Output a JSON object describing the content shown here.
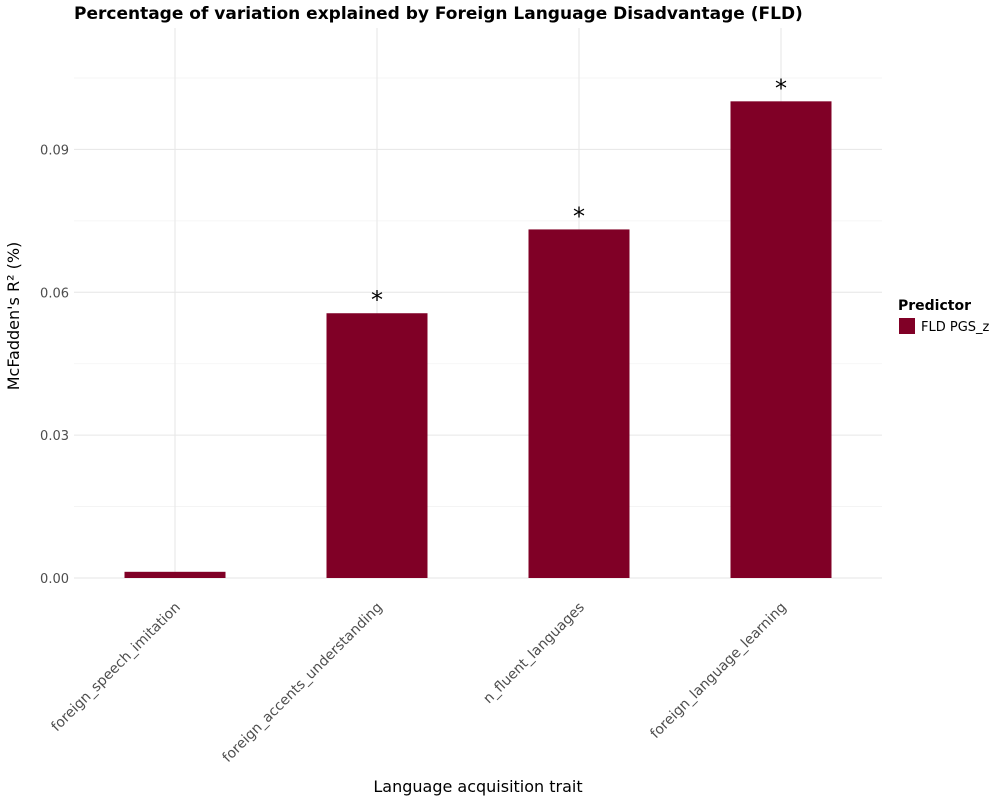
{
  "chart_data": {
    "type": "bar",
    "title": "Percentage of variation explained by Foreign Language Disadvantage (FLD)",
    "xlabel": "Language acquisition trait",
    "ylabel": "McFadden's R² (%)",
    "categories": [
      "foreign_speech_imitation",
      "foreign_accents_understanding",
      "n_fluent_languages",
      "foreign_language_learning"
    ],
    "series": [
      {
        "name": "FLD PGS_z",
        "values": [
          0.0013,
          0.0556,
          0.0732,
          0.1001
        ],
        "significance": [
          "",
          "*",
          "*",
          "*"
        ],
        "color": "#800026"
      }
    ],
    "ylim": [
      0,
      0.1155
    ],
    "yticks": [
      0.0,
      0.03,
      0.06,
      0.09
    ],
    "ytick_labels": [
      "0.00",
      "0.03",
      "0.06",
      "0.09"
    ],
    "grid": true,
    "legend": {
      "title": "Predictor",
      "position": "right",
      "entries": [
        "FLD PGS_z"
      ]
    }
  }
}
